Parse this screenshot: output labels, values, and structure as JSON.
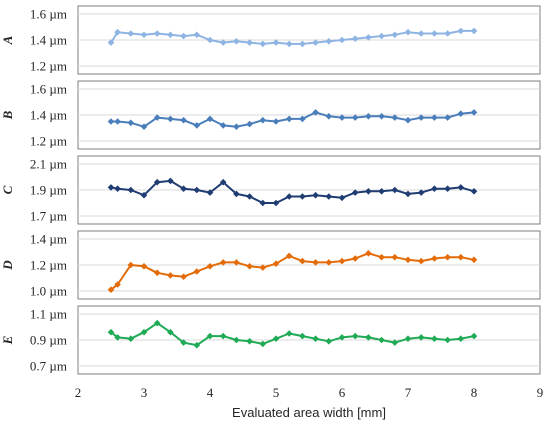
{
  "chart_data": {
    "type": "line",
    "xlabel": "Evaluated area width [mm]",
    "xlim": [
      2,
      9
    ],
    "x_ticks": [
      "2",
      "3",
      "4",
      "5",
      "6",
      "7",
      "8",
      "9"
    ],
    "x": [
      2.5,
      2.6,
      2.8,
      3.0,
      3.2,
      3.4,
      3.6,
      3.8,
      4.0,
      4.2,
      4.4,
      4.6,
      4.8,
      5.0,
      5.2,
      5.4,
      5.6,
      5.8,
      6.0,
      6.2,
      6.4,
      6.6,
      6.8,
      7.0,
      7.2,
      7.4,
      7.6,
      7.8,
      8.0
    ],
    "panels": [
      {
        "label": "A",
        "ylim": [
          1.2,
          1.6
        ],
        "y_ticks": [
          "1.2 µm",
          "1.4 µm",
          "1.6 µm"
        ],
        "color": "#8eb4e3",
        "values": [
          1.38,
          1.46,
          1.45,
          1.44,
          1.45,
          1.44,
          1.43,
          1.44,
          1.4,
          1.38,
          1.39,
          1.38,
          1.37,
          1.38,
          1.37,
          1.37,
          1.38,
          1.39,
          1.4,
          1.41,
          1.42,
          1.43,
          1.44,
          1.46,
          1.45,
          1.45,
          1.45,
          1.47,
          1.47
        ]
      },
      {
        "label": "B",
        "ylim": [
          1.2,
          1.6
        ],
        "y_ticks": [
          "1.2 µm",
          "1.4 µm",
          "1.6 µm"
        ],
        "color": "#4a7ebb",
        "values": [
          1.35,
          1.35,
          1.34,
          1.31,
          1.38,
          1.37,
          1.36,
          1.32,
          1.37,
          1.32,
          1.31,
          1.33,
          1.36,
          1.35,
          1.37,
          1.37,
          1.42,
          1.39,
          1.38,
          1.38,
          1.39,
          1.39,
          1.38,
          1.36,
          1.38,
          1.38,
          1.38,
          1.41,
          1.42
        ]
      },
      {
        "label": "C",
        "ylim": [
          1.7,
          2.1
        ],
        "y_ticks": [
          "1.7 µm",
          "1.9 µm",
          "2.1 µm"
        ],
        "color": "#1f3d73",
        "values": [
          1.92,
          1.91,
          1.9,
          1.86,
          1.96,
          1.97,
          1.91,
          1.9,
          1.88,
          1.96,
          1.87,
          1.85,
          1.8,
          1.8,
          1.85,
          1.85,
          1.86,
          1.85,
          1.84,
          1.88,
          1.89,
          1.89,
          1.9,
          1.87,
          1.88,
          1.91,
          1.91,
          1.92,
          1.89
        ]
      },
      {
        "label": "D",
        "ylim": [
          1.0,
          1.4
        ],
        "y_ticks": [
          "1.0 µm",
          "1.2 µm",
          "1.4 µm"
        ],
        "color": "#e36c09",
        "values": [
          1.01,
          1.05,
          1.2,
          1.19,
          1.14,
          1.12,
          1.11,
          1.15,
          1.19,
          1.22,
          1.22,
          1.19,
          1.18,
          1.21,
          1.27,
          1.23,
          1.22,
          1.22,
          1.23,
          1.25,
          1.29,
          1.26,
          1.26,
          1.24,
          1.23,
          1.25,
          1.26,
          1.26,
          1.24
        ]
      },
      {
        "label": "E",
        "ylim": [
          0.7,
          1.1
        ],
        "y_ticks": [
          "0.7 µm",
          "0.9 µm",
          "1.1 µm"
        ],
        "color": "#1faa55",
        "values": [
          0.96,
          0.92,
          0.91,
          0.96,
          1.03,
          0.96,
          0.88,
          0.86,
          0.93,
          0.93,
          0.9,
          0.89,
          0.87,
          0.91,
          0.95,
          0.93,
          0.91,
          0.89,
          0.92,
          0.93,
          0.92,
          0.9,
          0.88,
          0.91,
          0.92,
          0.91,
          0.9,
          0.91,
          0.93
        ]
      }
    ]
  }
}
